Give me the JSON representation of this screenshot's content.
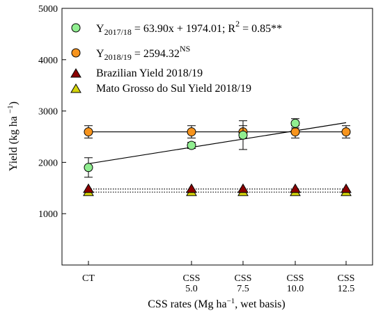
{
  "chart_data": {
    "type": "scatter",
    "title": "",
    "xlabel": "CSS rates (Mg ha−1, wet basis)",
    "ylabel": "Yield (kg ha −1)",
    "ylim": [
      0,
      5000
    ],
    "yticks": [
      1000,
      2000,
      3000,
      4000,
      5000
    ],
    "grid": false,
    "legend_position": "top-left",
    "categories": [
      {
        "label": "CT",
        "sub": ""
      },
      {
        "label": "CSS",
        "sub": "5.0"
      },
      {
        "label": "CSS",
        "sub": "7.5"
      },
      {
        "label": "CSS",
        "sub": "10.0"
      },
      {
        "label": "CSS",
        "sub": "12.5"
      }
    ],
    "series": [
      {
        "name": "Y2017/18 = 63.90x + 1974.01; R2 = 0.85**",
        "marker": "circle",
        "color": "#90EE90",
        "values": [
          1900,
          2330,
          2530,
          2760,
          null
        ],
        "err": [
          190,
          60,
          280,
          90,
          null
        ],
        "fit": {
          "slope": 63.9,
          "intercept": 1974.01,
          "from_x": 0,
          "to_x": 12.5,
          "style": "solid"
        }
      },
      {
        "name": "Y2018/19 = 2594.32NS",
        "marker": "circle",
        "color": "#F7941D",
        "values": [
          2594,
          2594,
          2594,
          2594,
          2594
        ],
        "err": [
          120,
          120,
          120,
          120,
          120
        ],
        "fit": {
          "slope": 0,
          "intercept": 2594.32,
          "from_x": 0,
          "to_x": 12.5,
          "style": "solid"
        }
      },
      {
        "name": "Brazilian Yield 2018/19",
        "marker": "triangle",
        "color": "#8B0000",
        "values": [
          1480,
          1480,
          1480,
          1480,
          1480
        ],
        "fit": {
          "slope": 0,
          "intercept": 1480,
          "from_x": 0,
          "to_x": 12.5,
          "style": "dotted"
        }
      },
      {
        "name": "Mato Grosso do Sul Yield 2018/19",
        "marker": "triangle",
        "color": "#D4D40A",
        "values": [
          1420,
          1420,
          1420,
          1420,
          1420
        ],
        "fit": {
          "slope": 0,
          "intercept": 1420,
          "from_x": 0,
          "to_x": 12.5,
          "style": "dotted"
        }
      }
    ],
    "legend": {
      "eq1": {
        "main": "Y",
        "sub": "2017/18",
        "text": " = 63.90x + 1974.01; R",
        "sup": "2",
        "tail": " = 0.85**"
      },
      "eq2": {
        "main": "Y",
        "sub": "2018/19",
        "text": " = 2594.32",
        "sup": "NS"
      },
      "l3": "Brazilian Yield 2018/19",
      "l4": "Mato Grosso do Sul Yield 2018/19"
    },
    "axis_text": {
      "x_main": "CSS rates (Mg ha",
      "x_sup": "−1",
      "x_tail": ", wet basis)",
      "y_main": "Yield (kg ha ",
      "y_sup": "−1",
      "y_tail": ")"
    }
  }
}
